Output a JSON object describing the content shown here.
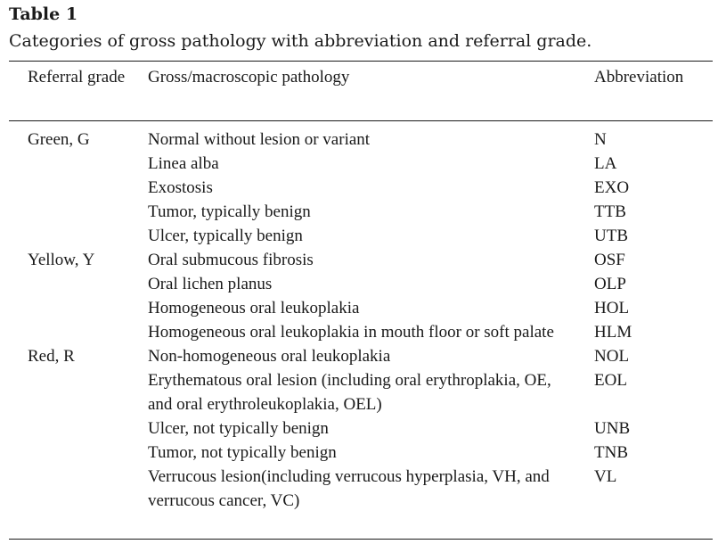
{
  "table": {
    "title": "Table 1",
    "caption": "Categories of gross pathology with abbreviation and referral grade.",
    "headers": {
      "grade": "Referral grade",
      "pathology": "Gross/macroscopic pathology",
      "abbreviation": "Abbreviation"
    },
    "rows": [
      {
        "grade": "Green, G",
        "pathology": "Normal without lesion or variant",
        "abbr": "N"
      },
      {
        "grade": "",
        "pathology": "Linea alba",
        "abbr": "LA"
      },
      {
        "grade": "",
        "pathology": "Exostosis",
        "abbr": "EXO"
      },
      {
        "grade": "",
        "pathology": "Tumor, typically benign",
        "abbr": "TTB"
      },
      {
        "grade": "",
        "pathology": "Ulcer, typically benign",
        "abbr": "UTB"
      },
      {
        "grade": "Yellow, Y",
        "pathology": "Oral submucous fibrosis",
        "abbr": "OSF"
      },
      {
        "grade": "",
        "pathology": "Oral lichen planus",
        "abbr": "OLP"
      },
      {
        "grade": "",
        "pathology": "Homogeneous oral leukoplakia",
        "abbr": "HOL"
      },
      {
        "grade": "",
        "pathology": "Homogeneous oral leukoplakia in mouth floor or soft palate",
        "abbr": "HLM"
      },
      {
        "grade": "Red, R",
        "pathology": "Non-homogeneous oral leukoplakia",
        "abbr": "NOL"
      },
      {
        "grade": "",
        "pathology": "Erythematous oral lesion (including oral erythroplakia, OE, and oral erythroleukoplakia, OEL)",
        "abbr": "EOL"
      },
      {
        "grade": "",
        "pathology": "Ulcer, not typically benign",
        "abbr": "UNB"
      },
      {
        "grade": "",
        "pathology": "Tumor, not typically benign",
        "abbr": "TNB"
      },
      {
        "grade": "",
        "pathology": "Verrucous lesion(including verrucous hyperplasia, VH, and verrucous cancer, VC)",
        "abbr": "VL"
      }
    ]
  }
}
